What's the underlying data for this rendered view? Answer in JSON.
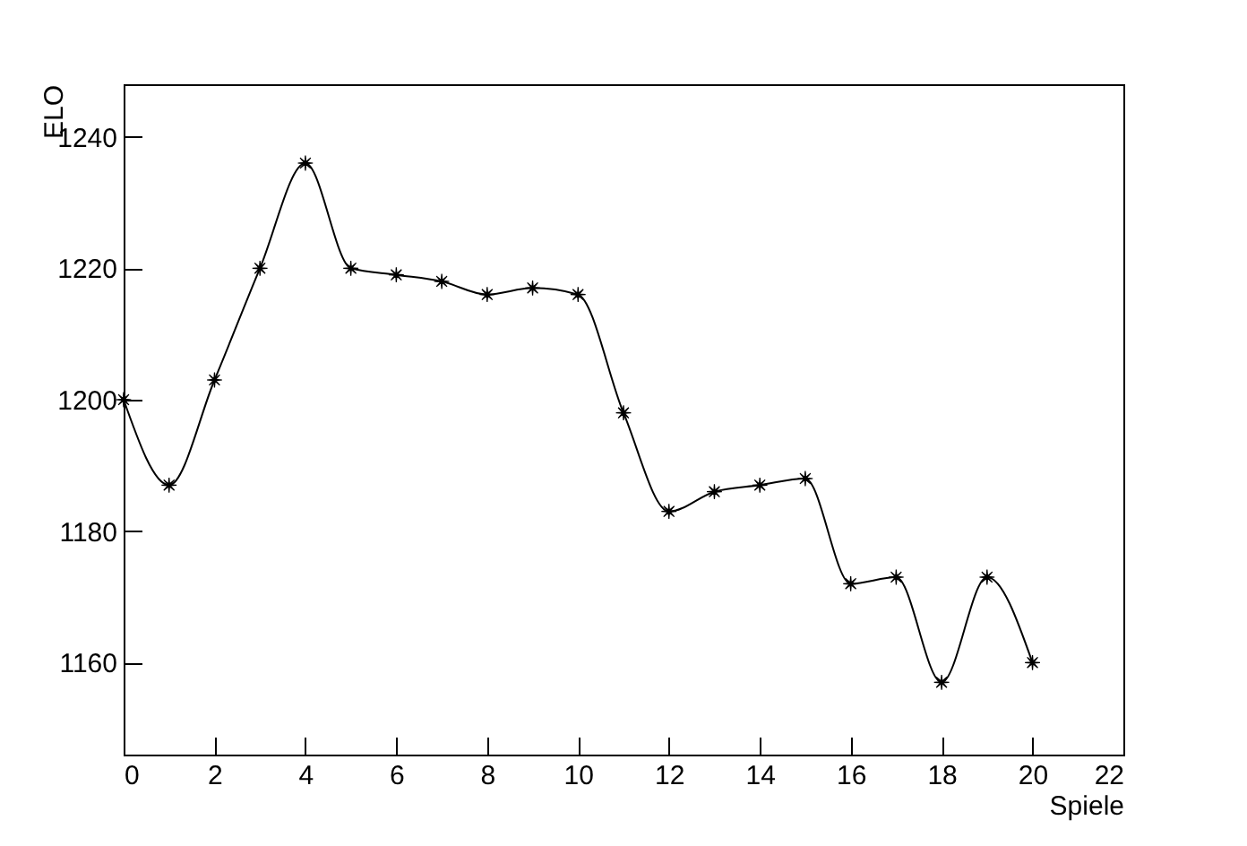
{
  "chart_data": {
    "type": "line",
    "xlabel": "Spiele",
    "ylabel": "ELO",
    "x": [
      0,
      1,
      2,
      3,
      4,
      5,
      6,
      7,
      8,
      9,
      10,
      11,
      12,
      13,
      14,
      15,
      16,
      17,
      18,
      19,
      20
    ],
    "series": [
      {
        "color": "#000000",
        "values": [
          1200,
          1187,
          1203,
          1220,
          1236,
          1220,
          1219,
          1218,
          1216,
          1217,
          1216,
          1198,
          1183,
          1186,
          1187,
          1188,
          1172,
          1173,
          1157,
          1173,
          1160
        ]
      }
    ],
    "xlim": [
      0,
      22
    ],
    "xticks": [
      0,
      2,
      4,
      6,
      8,
      10,
      12,
      14,
      16,
      18,
      20,
      22
    ],
    "ylim": [
      1146,
      1248
    ],
    "yticks": [
      {
        "value": 1160,
        "label": "1160"
      },
      {
        "value": 1180,
        "label": "1180"
      },
      {
        "value": 1200,
        "label": "1200"
      },
      {
        "value": 1220,
        "label": "1220"
      },
      {
        "value": 1240,
        "label": "1240"
      }
    ],
    "marker": "star",
    "grid": false
  }
}
